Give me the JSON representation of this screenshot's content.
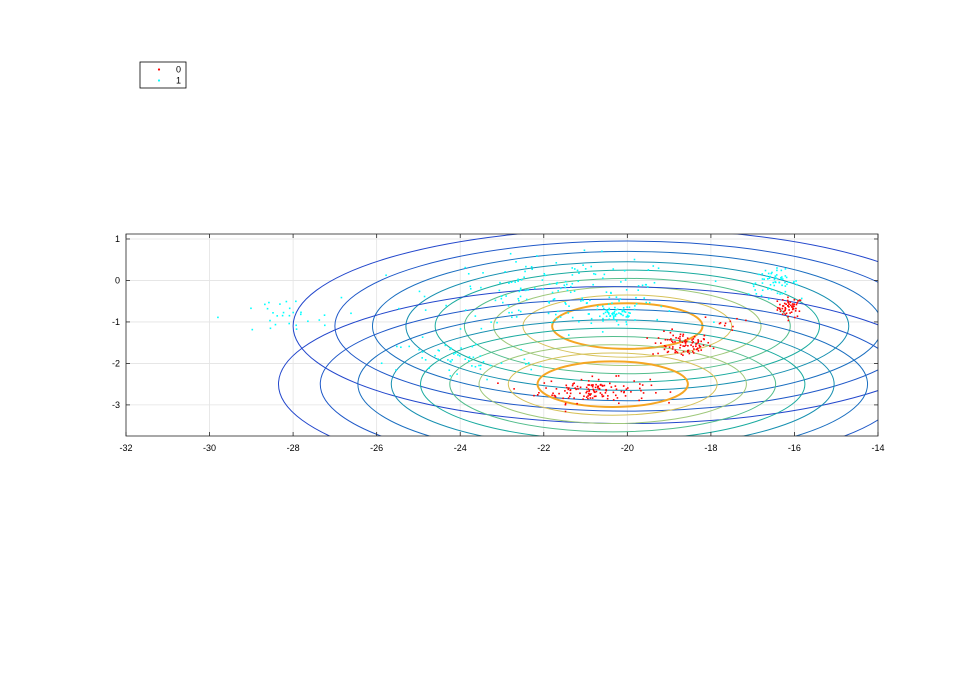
{
  "chart_data": {
    "type": "scatter",
    "title": "",
    "xlabel": "",
    "ylabel": "",
    "xlim": [
      -32,
      -14
    ],
    "ylim": [
      -3.75,
      1.12
    ],
    "xticks": [
      -32,
      -30,
      -28,
      -26,
      -24,
      -22,
      -20,
      -18,
      -16,
      -14
    ],
    "yticks": [
      1,
      0,
      -1,
      -2,
      -3
    ],
    "grid": true,
    "legend": {
      "location": "top-left, outside plot",
      "entries": [
        "0",
        "1"
      ]
    },
    "series": [
      {
        "name": "0",
        "color": "#ff0000",
        "marker": "point",
        "clusters": [
          {
            "center": [
              -16.1,
              -0.65
            ],
            "spread": [
              0.25,
              0.2
            ],
            "count": 55
          },
          {
            "center": [
              -18.7,
              -1.55
            ],
            "spread": [
              0.6,
              0.25
            ],
            "count": 90
          },
          {
            "center": [
              -20.8,
              -2.65
            ],
            "spread": [
              1.1,
              0.25
            ],
            "count": 130
          },
          {
            "center": [
              -17.5,
              -1.0
            ],
            "spread": [
              0.6,
              0.15
            ],
            "count": 10
          }
        ]
      },
      {
        "name": "1",
        "color": "#00ffff",
        "marker": "point",
        "clusters": [
          {
            "center": [
              -16.5,
              -0.05
            ],
            "spread": [
              0.5,
              0.25
            ],
            "count": 60
          },
          {
            "center": [
              -20.3,
              -0.8
            ],
            "spread": [
              0.5,
              0.2
            ],
            "count": 60
          },
          {
            "center": [
              -21.5,
              -0.3
            ],
            "spread": [
              2.5,
              0.7
            ],
            "count": 160
          },
          {
            "center": [
              -28.3,
              -0.9
            ],
            "spread": [
              1.2,
              0.4
            ],
            "count": 30
          },
          {
            "center": [
              -24.0,
              -1.9
            ],
            "spread": [
              1.5,
              0.45
            ],
            "count": 50
          }
        ]
      }
    ],
    "contours": {
      "centers": [
        [
          -20.0,
          -1.1
        ],
        [
          -20.35,
          -2.5
        ]
      ],
      "x_radii": [
        1.8,
        2.5,
        3.2,
        3.9,
        4.6,
        5.3,
        6.1,
        7.0,
        8.0
      ],
      "y_radii": [
        0.55,
        0.75,
        0.95,
        1.15,
        1.35,
        1.55,
        1.8,
        2.05,
        2.35
      ],
      "colors": [
        "#f5a623",
        "#d6c25a",
        "#9ec87a",
        "#52bd8c",
        "#1aab9f",
        "#168fb0",
        "#1a6ec0",
        "#1f58c8",
        "#2347cc"
      ],
      "line_widths": [
        2.0,
        1.0,
        1.0,
        1.0,
        1.0,
        1.0,
        1.0,
        1.0,
        1.0
      ]
    }
  }
}
